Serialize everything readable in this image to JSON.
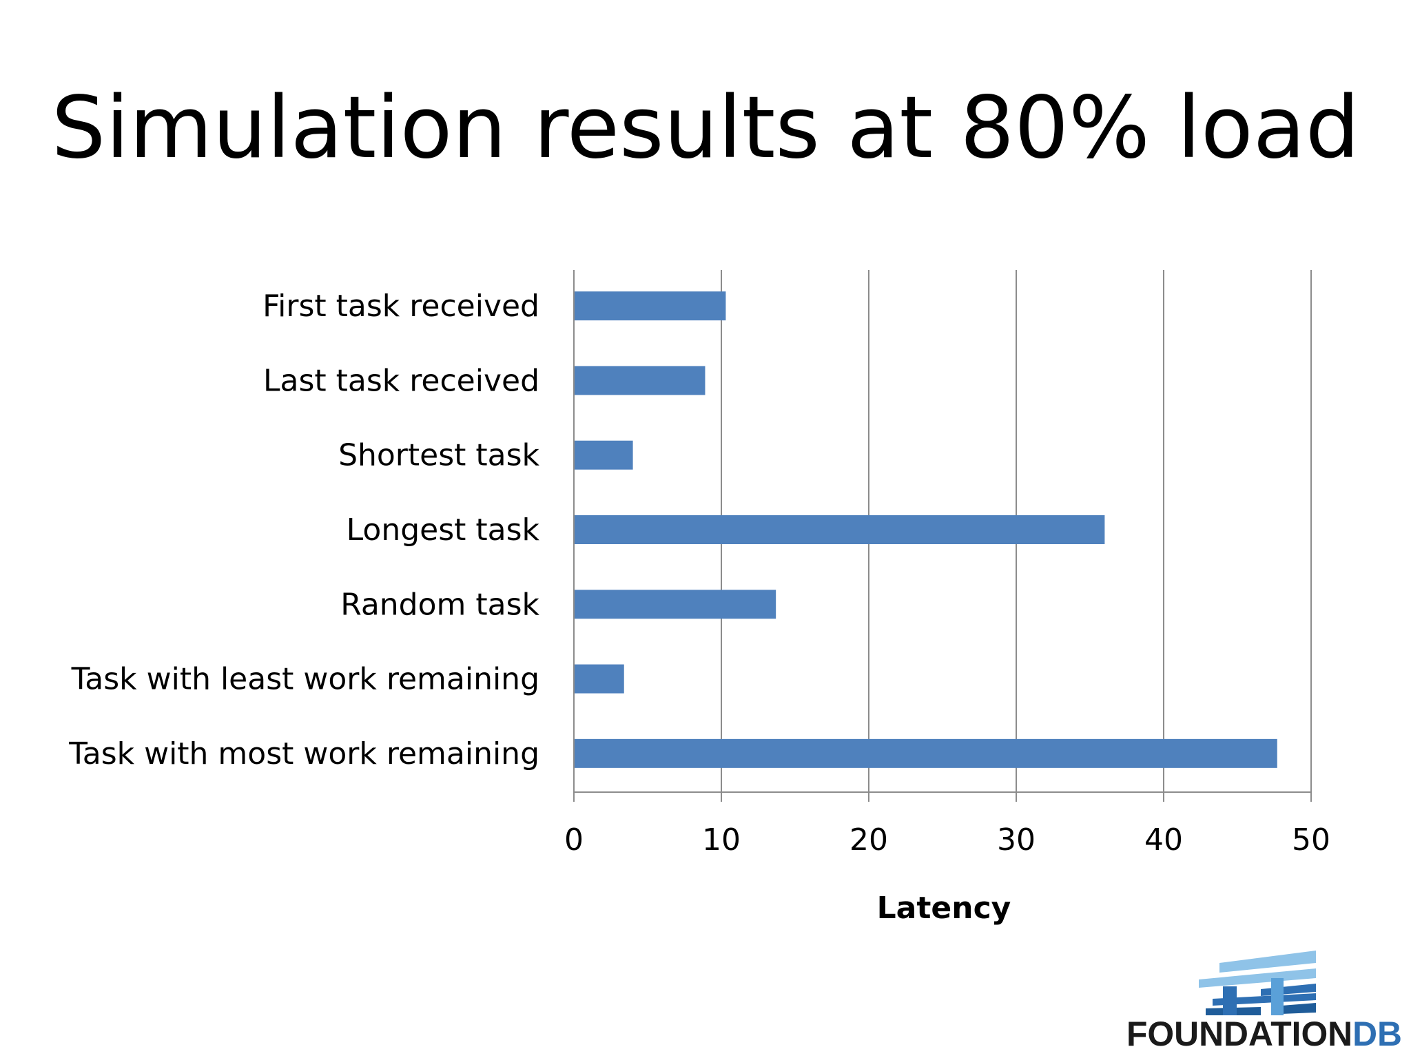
{
  "slide": {
    "title": "Simulation results at 80% load"
  },
  "chart_data": {
    "type": "bar",
    "orientation": "horizontal",
    "title": "",
    "xlabel": "Latency",
    "ylabel": "",
    "categories": [
      "First task received",
      "Last task received",
      "Shortest task",
      "Longest task",
      "Random task",
      "Task with least work remaining",
      "Task with most work remaining"
    ],
    "values": [
      10.3,
      8.9,
      4.0,
      36.0,
      13.7,
      3.4,
      47.7
    ],
    "xlim": [
      0,
      50
    ],
    "xticks": [
      0,
      10,
      20,
      30,
      40,
      50
    ],
    "grid": "vertical",
    "legend": "none",
    "bar_color": "#4f81bd"
  },
  "logo": {
    "text_main": "FOUNDATION",
    "text_accent": "DB",
    "colors": {
      "dark": "#1a1a1a",
      "accent": "#2e6fb3",
      "light": "#8fc3e8"
    }
  }
}
